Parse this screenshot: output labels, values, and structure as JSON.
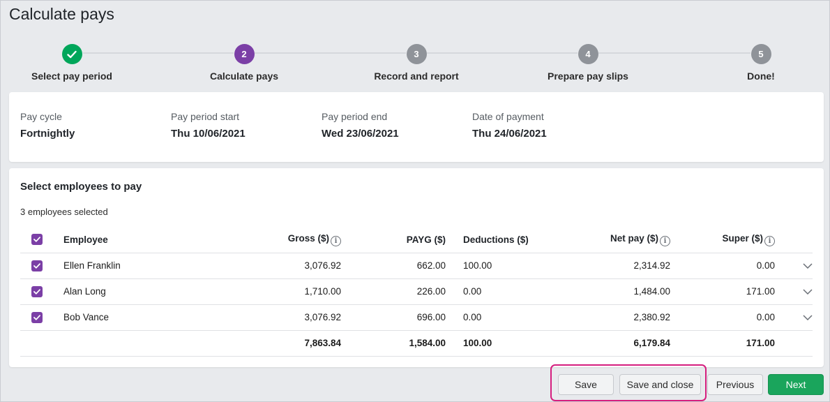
{
  "page": {
    "title": "Calculate pays"
  },
  "stepper": {
    "steps": [
      {
        "number": "",
        "label": "Select pay period",
        "state": "done"
      },
      {
        "number": "2",
        "label": "Calculate pays",
        "state": "active"
      },
      {
        "number": "3",
        "label": "Record and report",
        "state": "pending"
      },
      {
        "number": "4",
        "label": "Prepare pay slips",
        "state": "pending"
      },
      {
        "number": "5",
        "label": "Done!",
        "state": "pending"
      }
    ]
  },
  "period": {
    "pay_cycle": {
      "label": "Pay cycle",
      "value": "Fortnightly"
    },
    "start": {
      "label": "Pay period start",
      "value": "Thu 10/06/2021"
    },
    "end": {
      "label": "Pay period end",
      "value": "Wed 23/06/2021"
    },
    "payment": {
      "label": "Date of payment",
      "value": "Thu 24/06/2021"
    }
  },
  "employees": {
    "title": "Select employees to pay",
    "selected_count": "3 employees selected",
    "headers": {
      "employee": "Employee",
      "gross": "Gross ($)",
      "payg": "PAYG ($)",
      "deductions": "Deductions ($)",
      "net_pay": "Net pay ($)",
      "super": "Super ($)"
    },
    "rows": [
      {
        "name": "Ellen Franklin",
        "gross": "3,076.92",
        "payg": "662.00",
        "deductions": "100.00",
        "net_pay": "2,314.92",
        "super": "0.00"
      },
      {
        "name": "Alan Long",
        "gross": "1,710.00",
        "payg": "226.00",
        "deductions": "0.00",
        "net_pay": "1,484.00",
        "super": "171.00"
      },
      {
        "name": "Bob Vance",
        "gross": "3,076.92",
        "payg": "696.00",
        "deductions": "0.00",
        "net_pay": "2,380.92",
        "super": "0.00"
      }
    ],
    "totals": {
      "gross": "7,863.84",
      "payg": "1,584.00",
      "deductions": "100.00",
      "net_pay": "6,179.84",
      "super": "171.00"
    }
  },
  "actions": {
    "save": "Save",
    "save_close": "Save and close",
    "previous": "Previous",
    "next": "Next"
  },
  "colors": {
    "accent_purple": "#7b3fa6",
    "success_green": "#00a65a",
    "primary_button": "#1aa55c",
    "highlight_border": "#d51e7e"
  }
}
